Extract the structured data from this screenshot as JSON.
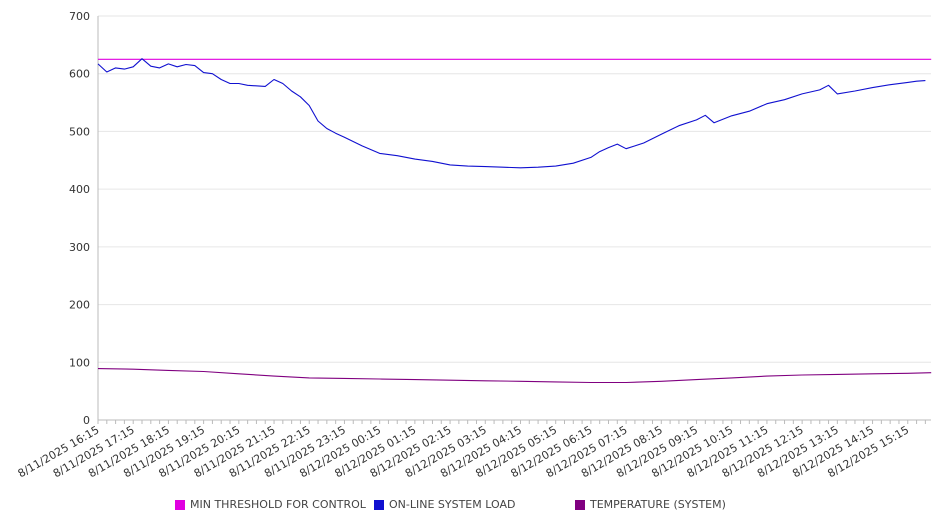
{
  "chart_data": {
    "type": "line",
    "title": "",
    "xlabel": "",
    "ylabel": "",
    "ylim": [
      0,
      700
    ],
    "yticks": [
      0,
      100,
      200,
      300,
      400,
      500,
      600,
      700
    ],
    "x_ticks": [
      "8/11/2025 16:15",
      "8/11/2025 17:15",
      "8/11/2025 18:15",
      "8/11/2025 19:15",
      "8/11/2025 20:15",
      "8/11/2025 21:15",
      "8/11/2025 22:15",
      "8/11/2025 23:15",
      "8/12/2025 00:15",
      "8/12/2025 01:15",
      "8/12/2025 02:15",
      "8/12/2025 03:15",
      "8/12/2025 04:15",
      "8/12/2025 05:15",
      "8/12/2025 06:15",
      "8/12/2025 07:15",
      "8/12/2025 08:15",
      "8/12/2025 09:15",
      "8/12/2025 10:15",
      "8/12/2025 11:15",
      "8/12/2025 12:15",
      "8/12/2025 13:15",
      "8/12/2025 14:15",
      "8/12/2025 15:15"
    ],
    "grid": true,
    "legend_position": "bottom",
    "series": [
      {
        "name": "MIN THRESHOLD FOR CONTROL",
        "color": "#e000e0",
        "x": [
          "8/11/2025 16:15",
          "8/12/2025 15:55"
        ],
        "values": [
          625,
          625
        ]
      },
      {
        "name": "ON-LINE SYSTEM LOAD",
        "color": "#1010d0",
        "x": [
          "8/11/2025 16:15",
          "8/11/2025 16:30",
          "8/11/2025 16:45",
          "8/11/2025 17:00",
          "8/11/2025 17:15",
          "8/11/2025 17:30",
          "8/11/2025 17:45",
          "8/11/2025 18:00",
          "8/11/2025 18:15",
          "8/11/2025 18:30",
          "8/11/2025 18:45",
          "8/11/2025 19:00",
          "8/11/2025 19:15",
          "8/11/2025 19:30",
          "8/11/2025 19:45",
          "8/11/2025 20:00",
          "8/11/2025 20:15",
          "8/11/2025 20:30",
          "8/11/2025 21:00",
          "8/11/2025 21:15",
          "8/11/2025 21:30",
          "8/11/2025 21:45",
          "8/11/2025 22:00",
          "8/11/2025 22:15",
          "8/11/2025 22:30",
          "8/11/2025 22:45",
          "8/11/2025 23:00",
          "8/11/2025 23:15",
          "8/11/2025 23:45",
          "8/12/2025 00:15",
          "8/12/2025 00:45",
          "8/12/2025 01:15",
          "8/12/2025 01:45",
          "8/12/2025 02:15",
          "8/12/2025 02:45",
          "8/12/2025 03:15",
          "8/12/2025 03:45",
          "8/12/2025 04:15",
          "8/12/2025 04:45",
          "8/12/2025 05:15",
          "8/12/2025 05:45",
          "8/12/2025 06:15",
          "8/12/2025 06:30",
          "8/12/2025 06:45",
          "8/12/2025 07:00",
          "8/12/2025 07:15",
          "8/12/2025 07:30",
          "8/12/2025 07:45",
          "8/12/2025 08:15",
          "8/12/2025 08:45",
          "8/12/2025 09:15",
          "8/12/2025 09:30",
          "8/12/2025 09:45",
          "8/12/2025 10:15",
          "8/12/2025 10:45",
          "8/12/2025 11:15",
          "8/12/2025 11:45",
          "8/12/2025 12:15",
          "8/12/2025 12:45",
          "8/12/2025 13:00",
          "8/12/2025 13:15",
          "8/12/2025 13:45",
          "8/12/2025 14:15",
          "8/12/2025 14:45",
          "8/12/2025 15:15",
          "8/12/2025 15:30",
          "8/12/2025 15:45"
        ],
        "values": [
          617,
          603,
          610,
          608,
          612,
          626,
          613,
          610,
          617,
          612,
          616,
          614,
          602,
          600,
          590,
          583,
          583,
          580,
          578,
          590,
          583,
          570,
          560,
          545,
          518,
          505,
          497,
          490,
          475,
          462,
          458,
          452,
          448,
          442,
          440,
          439,
          438,
          437,
          438,
          440,
          445,
          455,
          465,
          472,
          478,
          470,
          475,
          480,
          495,
          510,
          520,
          528,
          515,
          527,
          535,
          548,
          555,
          565,
          572,
          580,
          565,
          570,
          576,
          581,
          585,
          587,
          588
        ]
      },
      {
        "name": "TEMPERATURE (SYSTEM)",
        "color": "#800080",
        "x": [
          "8/11/2025 16:15",
          "8/11/2025 17:15",
          "8/11/2025 18:15",
          "8/11/2025 19:15",
          "8/11/2025 20:15",
          "8/11/2025 21:15",
          "8/11/2025 22:15",
          "8/11/2025 23:15",
          "8/12/2025 00:15",
          "8/12/2025 01:15",
          "8/12/2025 02:15",
          "8/12/2025 03:15",
          "8/12/2025 04:15",
          "8/12/2025 05:15",
          "8/12/2025 06:15",
          "8/12/2025 07:15",
          "8/12/2025 08:15",
          "8/12/2025 09:15",
          "8/12/2025 10:15",
          "8/12/2025 11:15",
          "8/12/2025 12:15",
          "8/12/2025 13:15",
          "8/12/2025 14:15",
          "8/12/2025 15:15",
          "8/12/2025 15:55"
        ],
        "values": [
          89,
          88,
          86,
          84,
          80,
          76,
          73,
          72,
          71,
          70,
          69,
          68,
          67,
          66,
          65,
          65,
          67,
          70,
          73,
          76,
          78,
          79,
          80,
          81,
          82
        ]
      }
    ]
  }
}
